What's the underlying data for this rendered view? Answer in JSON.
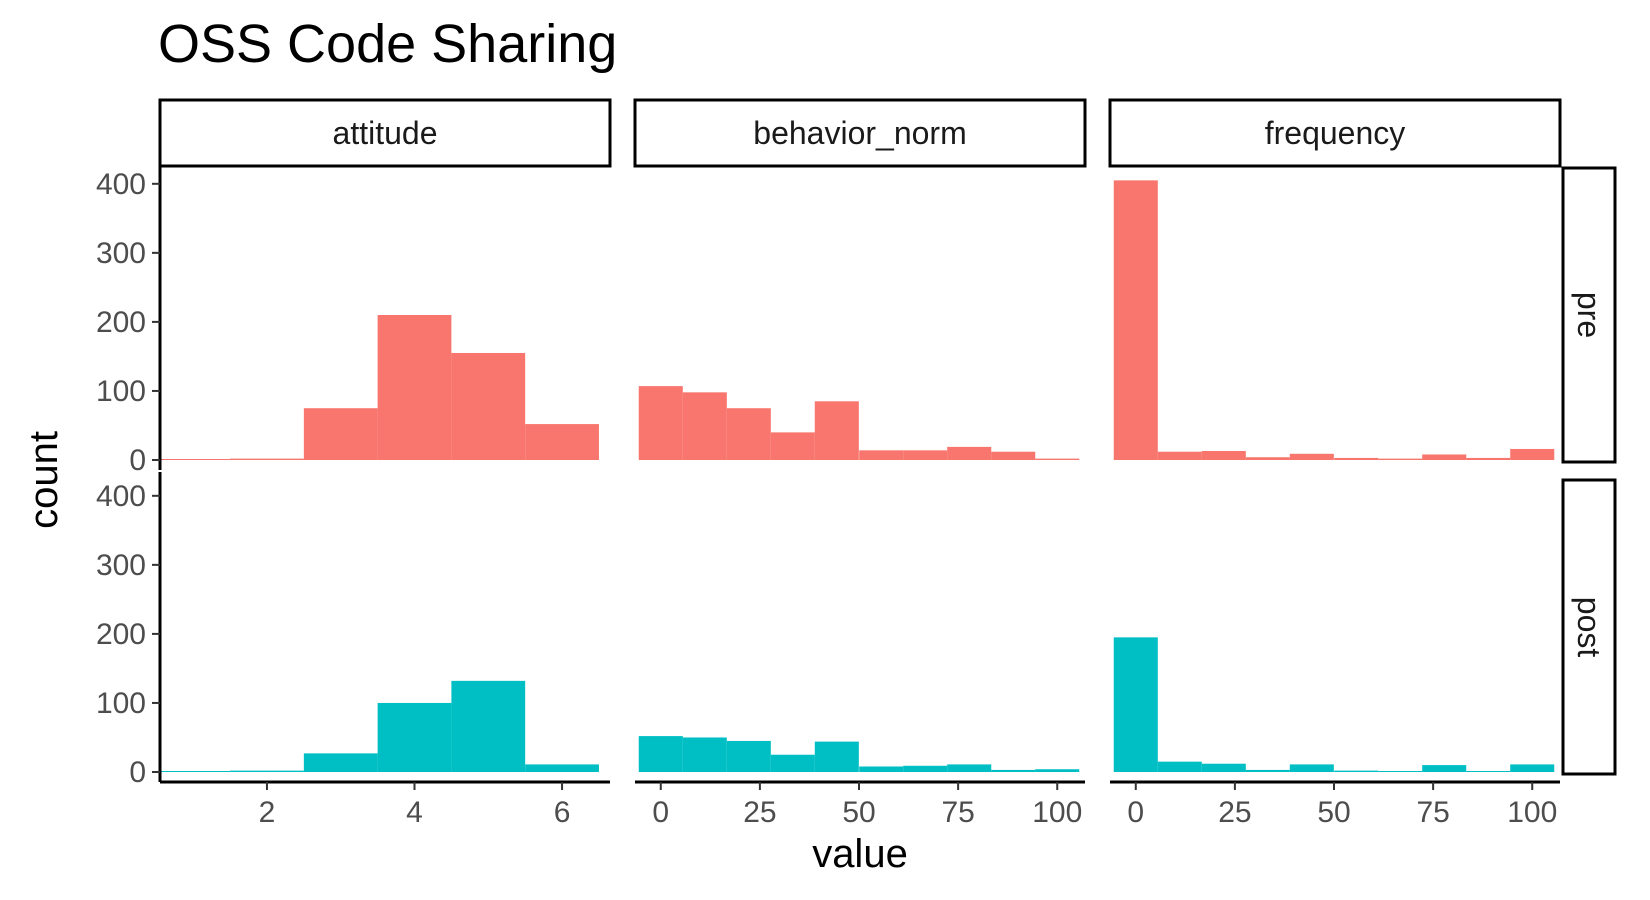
{
  "chart_data": {
    "type": "bar",
    "title": "OSS Code Sharing",
    "xlabel": "value",
    "ylabel": "count",
    "ylim": [
      0,
      420
    ],
    "y_ticks": [
      0,
      100,
      200,
      300,
      400
    ],
    "grid": false,
    "rows": [
      "pre",
      "post"
    ],
    "colors": {
      "pre": "#F8766D",
      "post": "#00BFC4"
    },
    "facets": [
      {
        "name": "attitude",
        "xlim": [
          0.55,
          6.65
        ],
        "x_ticks": [
          2,
          4,
          6
        ],
        "bin_width": 1,
        "bins": [
          1,
          2,
          3,
          4,
          5,
          6
        ],
        "pre": [
          1,
          2,
          75,
          210,
          155,
          52
        ],
        "post": [
          0,
          2,
          27,
          100,
          132,
          11
        ]
      },
      {
        "name": "behavior_norm",
        "xlim": [
          -6.5,
          107
        ],
        "x_ticks": [
          0,
          25,
          50,
          75,
          100
        ],
        "bin_width": 11.11,
        "bins": [
          0,
          11.1,
          22.2,
          33.3,
          44.4,
          55.6,
          66.7,
          77.8,
          88.9,
          100
        ],
        "pre": [
          107,
          98,
          75,
          40,
          85,
          14,
          14,
          19,
          12,
          2
        ],
        "post": [
          52,
          50,
          45,
          25,
          44,
          8,
          9,
          11,
          3,
          4
        ]
      },
      {
        "name": "frequency",
        "xlim": [
          -6.5,
          107
        ],
        "x_ticks": [
          0,
          25,
          50,
          75,
          100
        ],
        "bin_width": 11.11,
        "bins": [
          0,
          11.1,
          22.2,
          33.3,
          44.4,
          55.6,
          66.7,
          77.8,
          88.9,
          100
        ],
        "pre": [
          405,
          12,
          13,
          4,
          9,
          3,
          2,
          8,
          3,
          16
        ],
        "post": [
          195,
          15,
          12,
          3,
          11,
          2,
          1,
          10,
          1,
          11
        ]
      }
    ]
  }
}
